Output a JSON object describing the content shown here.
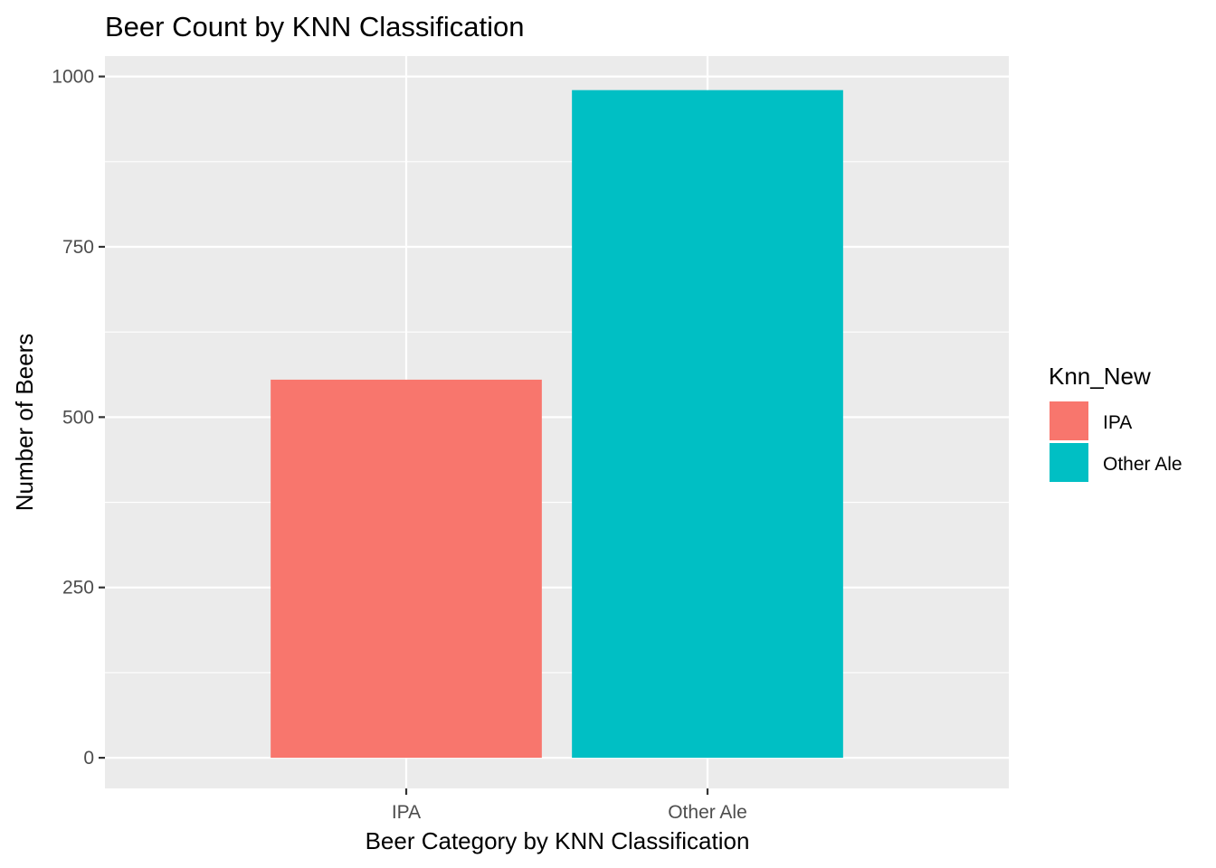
{
  "chart_data": {
    "type": "bar",
    "title": "Beer Count by KNN Classification",
    "xlabel": "Beer Category by KNN Classification",
    "ylabel": "Number of Beers",
    "categories": [
      "IPA",
      "Other Ale"
    ],
    "values": [
      555,
      980
    ],
    "colors": [
      "#F8766D",
      "#00BFC4"
    ],
    "ylim": [
      -45,
      1030
    ],
    "yticks": [
      0,
      250,
      500,
      750,
      1000
    ],
    "ytick_labels": [
      "0",
      "250",
      "500",
      "750",
      "1000"
    ],
    "grid": true,
    "panel_background": "#EBEBEB",
    "grid_color": "#FFFFFF",
    "legend": {
      "title": "Knn_New",
      "position": "right",
      "entries": [
        {
          "label": "IPA",
          "color": "#F8766D"
        },
        {
          "label": "Other Ale",
          "color": "#00BFC4"
        }
      ]
    }
  }
}
